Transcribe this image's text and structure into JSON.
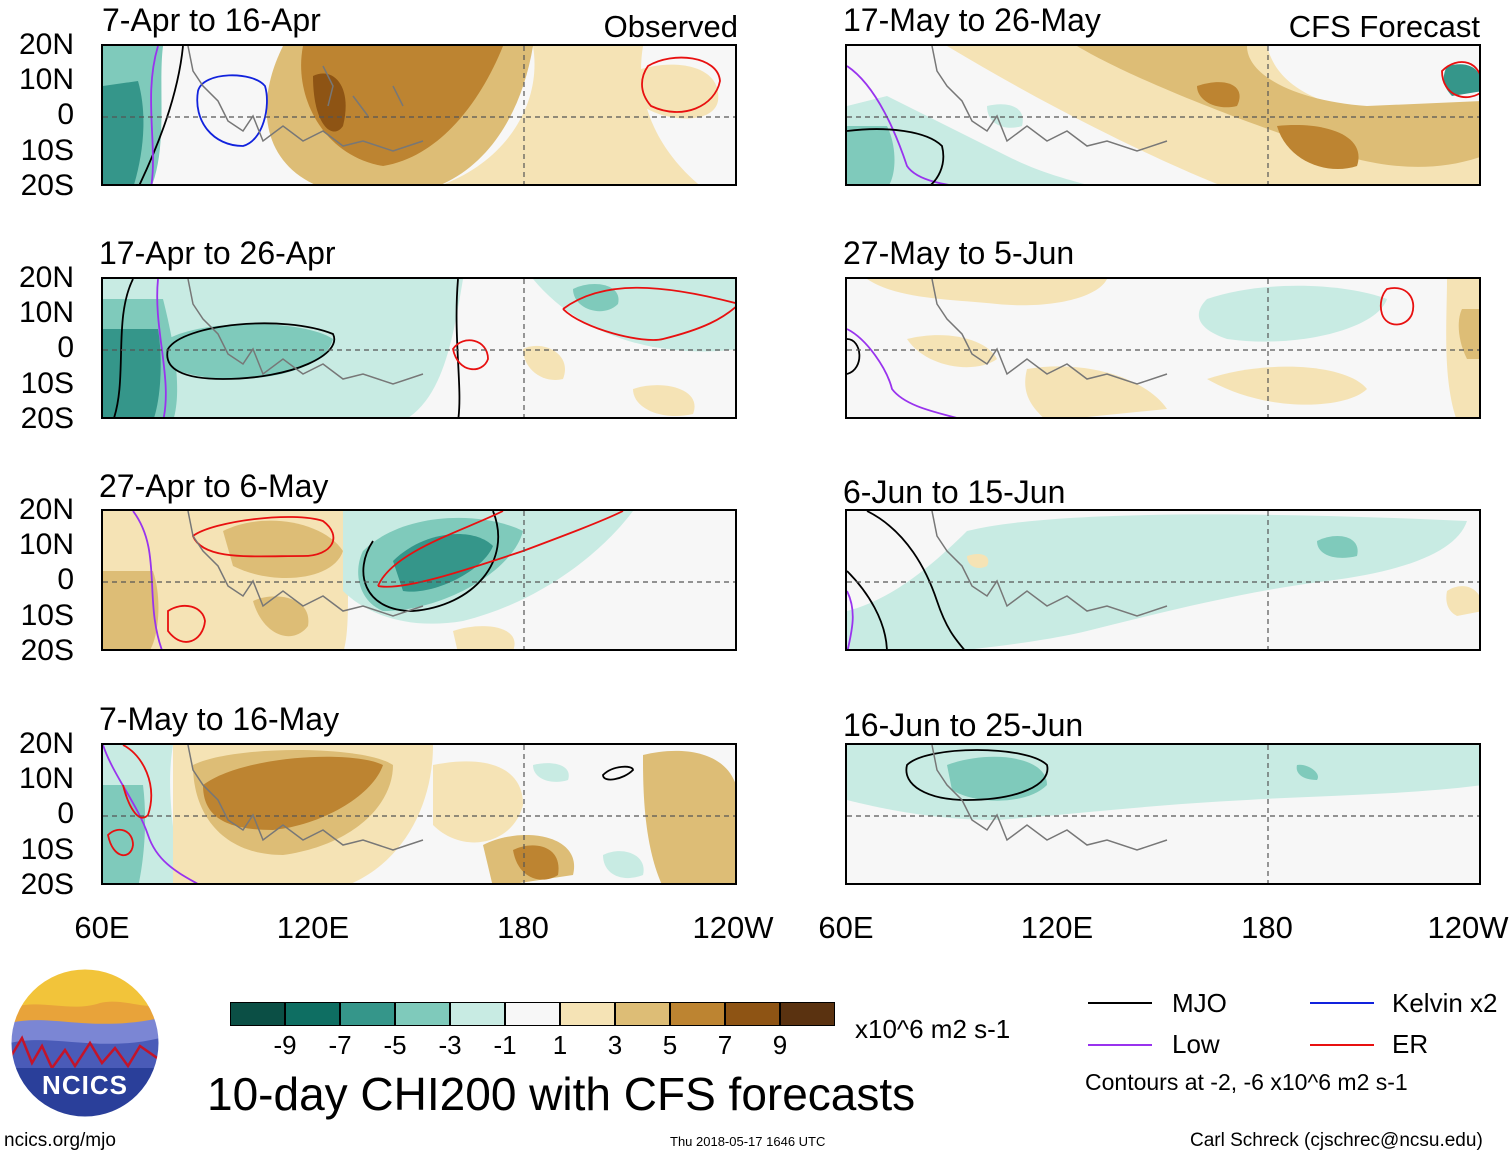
{
  "panels": [
    {
      "title": "7-Apr to 16-Apr",
      "label": "Observed"
    },
    {
      "title": "17-Apr to 26-Apr",
      "label": ""
    },
    {
      "title": "27-Apr to 6-May",
      "label": ""
    },
    {
      "title": "7-May to 16-May",
      "label": ""
    },
    {
      "title": "17-May to 26-May",
      "label": "CFS Forecast"
    },
    {
      "title": "27-May to 5-Jun",
      "label": ""
    },
    {
      "title": "6-Jun to 15-Jun",
      "label": ""
    },
    {
      "title": "16-Jun to 25-Jun",
      "label": ""
    }
  ],
  "axes": {
    "lat_labels": [
      "20N",
      "10N",
      "0",
      "10S",
      "20S"
    ],
    "lon_labels": [
      "60E",
      "120E",
      "180",
      "120W"
    ]
  },
  "colorbar": {
    "labels": [
      "-9",
      "-7",
      "-5",
      "-3",
      "-1",
      "1",
      "3",
      "5",
      "7",
      "9"
    ],
    "colors": [
      "#0b4f45",
      "#0e6e62",
      "#35968a",
      "#7fcabb",
      "#c8ebe3",
      "#f7f7f7",
      "#f5e3b5",
      "#ddbd76",
      "#bd8431",
      "#8e5414",
      "#5a3210"
    ],
    "units": "x10^6 m2 s-1"
  },
  "legend": {
    "mjo": "MJO",
    "low": "Low",
    "kelvin": "Kelvin x2",
    "er": "ER",
    "contours_note": "Contours at -2, -6 x10^6 m2 s-1",
    "colors": {
      "mjo": "#000000",
      "low": "#9933ee",
      "kelvin": "#1122dd",
      "er": "#e81010"
    }
  },
  "logo": {
    "text": "NCICS"
  },
  "main_title": "10-day CHI200 with CFS forecasts",
  "footer": {
    "url": "ncics.org/mjo",
    "timestamp": "Thu 2018-05-17 1646 UTC",
    "author": "Carl Schreck (cjschrec@ncsu.edu)"
  }
}
